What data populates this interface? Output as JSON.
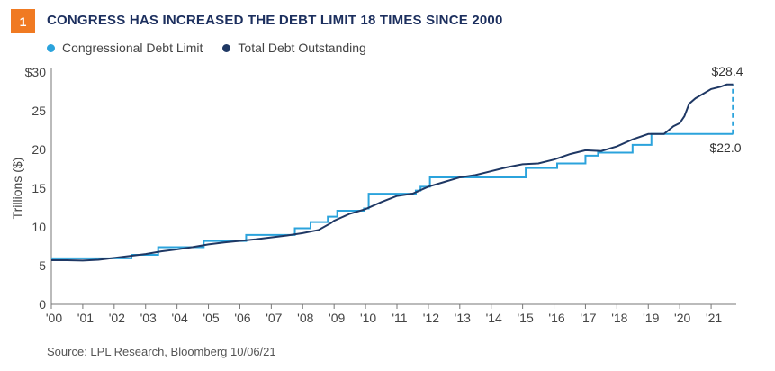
{
  "figure": {
    "number": "1",
    "title": "CONGRESS HAS INCREASED THE DEBT LIMIT 18 TIMES SINCE 2000",
    "source": "Source: LPL Research, Bloomberg 10/06/21"
  },
  "colors": {
    "badge": "#f07a22",
    "title": "#1c2f5e",
    "debt_limit": "#2ba3dc",
    "total_debt": "#1f3864"
  },
  "chart_data": {
    "type": "line",
    "title": "CONGRESS HAS INCREASED THE DEBT LIMIT 18 TIMES SINCE 2000",
    "xlabel": "",
    "ylabel": "Trillions ($)",
    "ylim": [
      0,
      30
    ],
    "xlim": [
      2000,
      2021.8
    ],
    "y_ticks": [
      "0",
      "5",
      "10",
      "15",
      "20",
      "25",
      "$30"
    ],
    "x_ticks": [
      "'00",
      "'01",
      "'02",
      "'03",
      "'04",
      "'05",
      "'06",
      "'07",
      "'08",
      "'09",
      "'10",
      "'11",
      "'12",
      "'13",
      "'14",
      "'15",
      "'16",
      "'17",
      "'18",
      "'19",
      "'20",
      "'21"
    ],
    "grid": false,
    "legend_position": "top-left",
    "annotations": [
      "$28.4",
      "$22.0"
    ],
    "series": [
      {
        "name": "Congressional Debt Limit",
        "color": "#2ba3dc",
        "step": true,
        "points": [
          [
            2000.0,
            5.95
          ],
          [
            2002.55,
            6.4
          ],
          [
            2003.4,
            7.38
          ],
          [
            2004.85,
            8.18
          ],
          [
            2006.2,
            8.97
          ],
          [
            2007.75,
            9.82
          ],
          [
            2008.25,
            10.62
          ],
          [
            2008.8,
            11.32
          ],
          [
            2009.1,
            12.1
          ],
          [
            2009.95,
            12.39
          ],
          [
            2010.1,
            14.29
          ],
          [
            2011.6,
            14.69
          ],
          [
            2011.75,
            15.19
          ],
          [
            2012.05,
            16.39
          ],
          [
            2013.1,
            16.39
          ],
          [
            2015.1,
            17.6
          ],
          [
            2016.1,
            18.2
          ],
          [
            2017.0,
            19.2
          ],
          [
            2017.4,
            19.6
          ],
          [
            2018.5,
            20.6
          ],
          [
            2019.1,
            22.0
          ],
          [
            2021.7,
            22.0
          ]
        ],
        "raised_to": [
          [
            2021.7,
            28.4
          ]
        ]
      },
      {
        "name": "Total Debt Outstanding",
        "color": "#1f3864",
        "points": [
          [
            2000.0,
            5.7
          ],
          [
            2000.5,
            5.7
          ],
          [
            2001.0,
            5.65
          ],
          [
            2001.5,
            5.75
          ],
          [
            2002.0,
            6.0
          ],
          [
            2002.5,
            6.25
          ],
          [
            2003.0,
            6.5
          ],
          [
            2003.5,
            6.85
          ],
          [
            2004.0,
            7.1
          ],
          [
            2004.5,
            7.4
          ],
          [
            2005.0,
            7.75
          ],
          [
            2005.5,
            8.0
          ],
          [
            2006.0,
            8.2
          ],
          [
            2006.5,
            8.4
          ],
          [
            2007.0,
            8.65
          ],
          [
            2007.5,
            8.9
          ],
          [
            2008.0,
            9.2
          ],
          [
            2008.5,
            9.6
          ],
          [
            2008.9,
            10.5
          ],
          [
            2009.0,
            10.8
          ],
          [
            2009.5,
            11.7
          ],
          [
            2010.0,
            12.3
          ],
          [
            2010.5,
            13.2
          ],
          [
            2011.0,
            14.0
          ],
          [
            2011.5,
            14.3
          ],
          [
            2012.0,
            15.2
          ],
          [
            2012.5,
            15.8
          ],
          [
            2013.0,
            16.4
          ],
          [
            2013.5,
            16.7
          ],
          [
            2014.0,
            17.2
          ],
          [
            2014.5,
            17.7
          ],
          [
            2015.0,
            18.1
          ],
          [
            2015.5,
            18.2
          ],
          [
            2016.0,
            18.7
          ],
          [
            2016.5,
            19.4
          ],
          [
            2017.0,
            19.9
          ],
          [
            2017.5,
            19.8
          ],
          [
            2018.0,
            20.4
          ],
          [
            2018.5,
            21.3
          ],
          [
            2019.0,
            22.0
          ],
          [
            2019.5,
            22.0
          ],
          [
            2019.8,
            23.0
          ],
          [
            2020.0,
            23.4
          ],
          [
            2020.15,
            24.3
          ],
          [
            2020.3,
            25.9
          ],
          [
            2020.5,
            26.6
          ],
          [
            2021.0,
            27.8
          ],
          [
            2021.3,
            28.1
          ],
          [
            2021.5,
            28.4
          ],
          [
            2021.7,
            28.4
          ]
        ]
      }
    ]
  }
}
